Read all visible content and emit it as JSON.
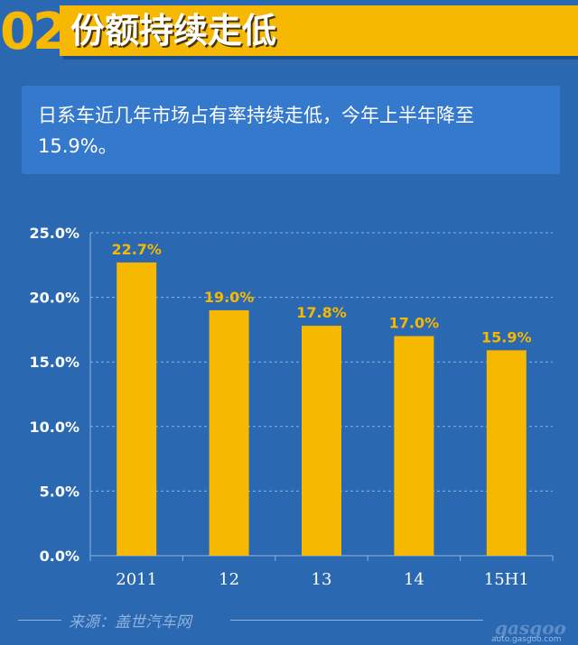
{
  "header": {
    "number": "02",
    "title": "份额持续走低"
  },
  "info": {
    "text": "日系车近几年市场占有率持续走低，今年上半年降至15.9%。"
  },
  "chart_data": {
    "type": "bar",
    "categories": [
      "2011",
      "12",
      "13",
      "14",
      "15H1"
    ],
    "values": [
      22.7,
      19.0,
      17.8,
      17.0,
      15.9
    ],
    "data_labels": [
      "22.7%",
      "19.0%",
      "17.8%",
      "17.0%",
      "15.9%"
    ],
    "y_ticks": [
      "0.0%",
      "5.0%",
      "10.0%",
      "15.0%",
      "20.0%",
      "25.0%"
    ],
    "ylim": [
      0,
      25
    ],
    "grid": true,
    "colors": {
      "bar": "#f6b800",
      "label": "#f6b800",
      "axis_text": "#ffffff",
      "grid": "#8fb2dd"
    }
  },
  "footer": {
    "source": "来源：盖世汽车网",
    "logo_text": "gasgoo",
    "logo_url": "auto.gasgoo.com"
  }
}
